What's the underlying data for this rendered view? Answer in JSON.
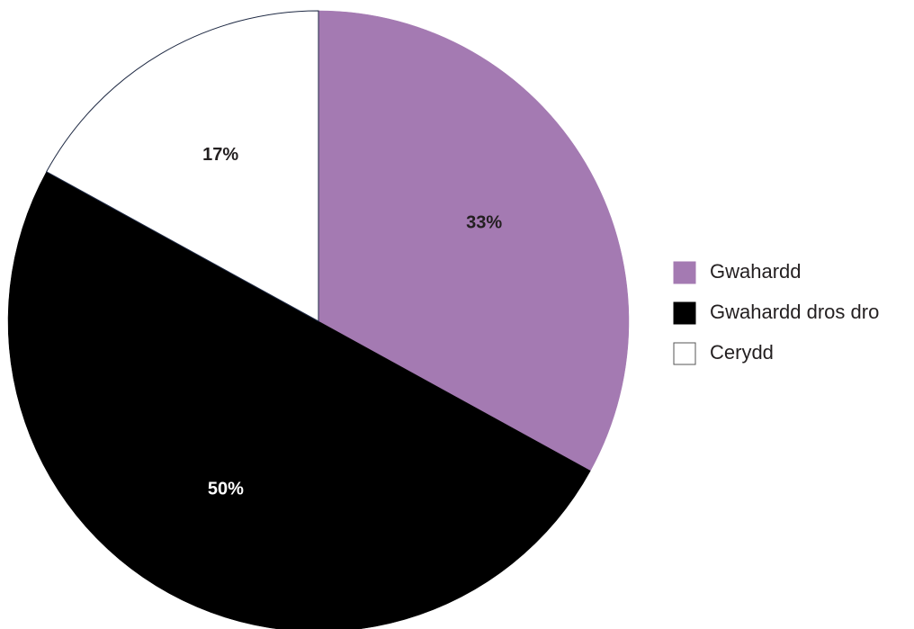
{
  "chart_data": {
    "type": "pie",
    "start_angle_deg": 0,
    "direction": "clockwise",
    "legend_position": "right",
    "slices": [
      {
        "name": "Gwahardd",
        "value": 33,
        "label": "33%",
        "color": "#a47ab2",
        "label_color": "#231f20"
      },
      {
        "name": "Gwahardd dros dro",
        "value": 50,
        "label": "50%",
        "color": "#000000",
        "label_color": "#ffffff"
      },
      {
        "name": "Cerydd",
        "value": 17,
        "label": "17%",
        "color": "#ffffff",
        "label_color": "#231f20"
      }
    ]
  }
}
